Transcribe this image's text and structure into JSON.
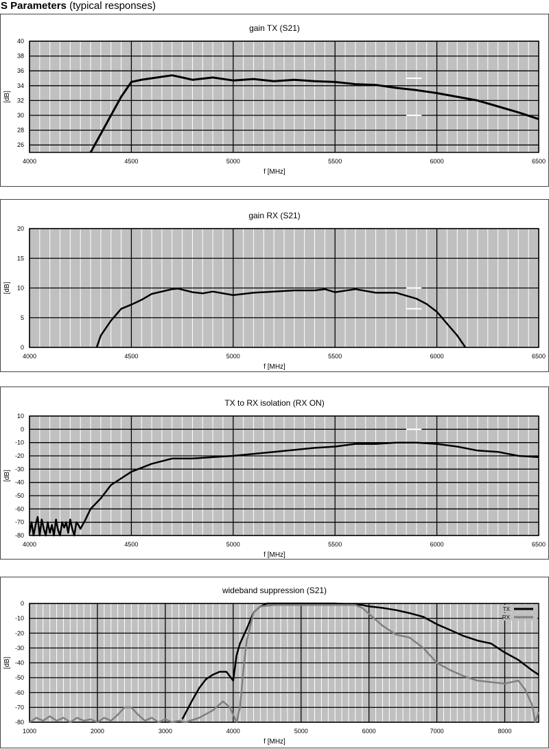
{
  "page": {
    "title_bold": "S Parameters",
    "title_rest": " (typical responses)"
  },
  "chart_data": [
    {
      "type": "line",
      "title": "gain TX (S21)",
      "xlabel": "f [MHz]",
      "ylabel": "[dB]",
      "xlim": [
        4000,
        6500
      ],
      "ylim": [
        25,
        40
      ],
      "xticks": [
        4000,
        4500,
        5000,
        5500,
        6000,
        6500
      ],
      "yticks": [
        26,
        28,
        30,
        32,
        34,
        36,
        38,
        40
      ],
      "grid": true,
      "spec_markers": [
        {
          "x": [
            5850,
            5925
          ],
          "y": 35
        },
        {
          "x": [
            5850,
            5925
          ],
          "y": 30
        }
      ],
      "series": [
        {
          "color": "#000000",
          "points": [
            [
              4300,
              25
            ],
            [
              4350,
              27.5
            ],
            [
              4400,
              30
            ],
            [
              4450,
              32.5
            ],
            [
              4500,
              34.5
            ],
            [
              4550,
              34.8
            ],
            [
              4600,
              35
            ],
            [
              4700,
              35.4
            ],
            [
              4750,
              35.1
            ],
            [
              4800,
              34.8
            ],
            [
              4900,
              35.1
            ],
            [
              5000,
              34.7
            ],
            [
              5100,
              34.9
            ],
            [
              5200,
              34.6
            ],
            [
              5300,
              34.8
            ],
            [
              5400,
              34.6
            ],
            [
              5500,
              34.5
            ],
            [
              5600,
              34.2
            ],
            [
              5700,
              34.1
            ],
            [
              5800,
              33.7
            ],
            [
              5900,
              33.4
            ],
            [
              6000,
              33
            ],
            [
              6100,
              32.5
            ],
            [
              6200,
              32
            ],
            [
              6300,
              31.2
            ],
            [
              6400,
              30.4
            ],
            [
              6500,
              29.5
            ]
          ]
        }
      ]
    },
    {
      "type": "line",
      "title": "gain RX (S21)",
      "xlabel": "f [MHz]",
      "ylabel": "[dB]",
      "xlim": [
        4000,
        6500
      ],
      "ylim": [
        0,
        20
      ],
      "xticks": [
        4000,
        4500,
        5000,
        5500,
        6000,
        6500
      ],
      "yticks": [
        0,
        5,
        10,
        15,
        20
      ],
      "grid": true,
      "spec_markers": [
        {
          "x": [
            5850,
            5925
          ],
          "y": 10
        },
        {
          "x": [
            5850,
            5925
          ],
          "y": 6.5
        }
      ],
      "series": [
        {
          "color": "#000000",
          "points": [
            [
              4330,
              0
            ],
            [
              4350,
              2
            ],
            [
              4400,
              4.5
            ],
            [
              4450,
              6.5
            ],
            [
              4500,
              7.2
            ],
            [
              4550,
              8
            ],
            [
              4600,
              9
            ],
            [
              4700,
              9.8
            ],
            [
              4730,
              9.9
            ],
            [
              4800,
              9.3
            ],
            [
              4850,
              9.1
            ],
            [
              4900,
              9.4
            ],
            [
              5000,
              8.8
            ],
            [
              5100,
              9.2
            ],
            [
              5200,
              9.4
            ],
            [
              5300,
              9.6
            ],
            [
              5400,
              9.6
            ],
            [
              5450,
              9.8
            ],
            [
              5500,
              9.3
            ],
            [
              5600,
              9.8
            ],
            [
              5700,
              9.2
            ],
            [
              5800,
              9.2
            ],
            [
              5900,
              8.2
            ],
            [
              5950,
              7.3
            ],
            [
              6000,
              6
            ],
            [
              6050,
              4
            ],
            [
              6100,
              2
            ],
            [
              6140,
              0
            ]
          ]
        }
      ]
    },
    {
      "type": "line",
      "title": "TX to RX isolation (RX ON)",
      "xlabel": "f [MHz]",
      "ylabel": "[dB]",
      "xlim": [
        4000,
        6500
      ],
      "ylim": [
        -80,
        10
      ],
      "xticks": [
        4000,
        4500,
        5000,
        5500,
        6000,
        6500
      ],
      "yticks": [
        -80,
        -70,
        -60,
        -50,
        -40,
        -30,
        -20,
        -10,
        0,
        10
      ],
      "grid": true,
      "spec_markers": [
        {
          "x": [
            5850,
            5925
          ],
          "y": 0
        }
      ],
      "series": [
        {
          "color": "#000000",
          "points": [
            [
              4000,
              -78
            ],
            [
              4010,
              -70
            ],
            [
              4020,
              -80
            ],
            [
              4030,
              -72
            ],
            [
              4040,
              -66
            ],
            [
              4050,
              -80
            ],
            [
              4060,
              -68
            ],
            [
              4070,
              -75
            ],
            [
              4080,
              -80
            ],
            [
              4090,
              -70
            ],
            [
              4100,
              -78
            ],
            [
              4110,
              -72
            ],
            [
              4120,
              -80
            ],
            [
              4130,
              -68
            ],
            [
              4140,
              -76
            ],
            [
              4150,
              -80
            ],
            [
              4160,
              -70
            ],
            [
              4170,
              -74
            ],
            [
              4180,
              -70
            ],
            [
              4190,
              -78
            ],
            [
              4200,
              -68
            ],
            [
              4210,
              -75
            ],
            [
              4220,
              -80
            ],
            [
              4230,
              -70
            ],
            [
              4240,
              -72
            ],
            [
              4250,
              -75
            ],
            [
              4275,
              -68
            ],
            [
              4300,
              -60
            ],
            [
              4350,
              -52
            ],
            [
              4400,
              -42
            ],
            [
              4500,
              -32
            ],
            [
              4600,
              -26
            ],
            [
              4700,
              -22
            ],
            [
              4800,
              -22
            ],
            [
              4900,
              -21
            ],
            [
              5000,
              -20
            ],
            [
              5200,
              -17
            ],
            [
              5400,
              -14
            ],
            [
              5500,
              -13
            ],
            [
              5600,
              -11
            ],
            [
              5700,
              -11
            ],
            [
              5800,
              -10
            ],
            [
              5900,
              -10
            ],
            [
              6000,
              -11
            ],
            [
              6100,
              -13
            ],
            [
              6200,
              -16
            ],
            [
              6300,
              -17
            ],
            [
              6400,
              -20
            ],
            [
              6500,
              -21
            ]
          ]
        }
      ]
    },
    {
      "type": "line",
      "title": "wideband suppression (S21)",
      "xlabel": "f [MHz]",
      "ylabel": "[dB]",
      "xlim": [
        1000,
        8500
      ],
      "ylim": [
        -80,
        0
      ],
      "xticks": [
        1000,
        2000,
        3000,
        4000,
        5000,
        6000,
        7000,
        8000
      ],
      "yticks": [
        -80,
        -70,
        -60,
        -50,
        -40,
        -30,
        -20,
        -10,
        0
      ],
      "grid": true,
      "legend": "top-right",
      "series": [
        {
          "name": "TX",
          "color": "#000000",
          "points": [
            [
              3250,
              -78
            ],
            [
              3400,
              -65
            ],
            [
              3500,
              -57
            ],
            [
              3600,
              -51
            ],
            [
              3700,
              -48
            ],
            [
              3800,
              -46
            ],
            [
              3900,
              -46
            ],
            [
              4000,
              -52
            ],
            [
              4050,
              -35
            ],
            [
              4100,
              -27
            ],
            [
              4200,
              -17
            ],
            [
              4300,
              -6
            ],
            [
              4400,
              -2
            ],
            [
              4500,
              0
            ],
            [
              4600,
              0
            ],
            [
              5000,
              0
            ],
            [
              5500,
              0
            ],
            [
              5900,
              -1
            ],
            [
              6000,
              -2
            ],
            [
              6200,
              -3
            ],
            [
              6400,
              -4.5
            ],
            [
              6600,
              -6.5
            ],
            [
              6800,
              -9
            ],
            [
              7000,
              -14
            ],
            [
              7200,
              -18
            ],
            [
              7400,
              -22
            ],
            [
              7600,
              -25
            ],
            [
              7800,
              -27
            ],
            [
              8000,
              -33
            ],
            [
              8200,
              -38
            ],
            [
              8400,
              -45
            ],
            [
              8500,
              -48
            ]
          ]
        },
        {
          "name": "RX",
          "color": "#808080",
          "points": [
            [
              1000,
              -80
            ],
            [
              1100,
              -77
            ],
            [
              1200,
              -79
            ],
            [
              1300,
              -76
            ],
            [
              1400,
              -79
            ],
            [
              1500,
              -77
            ],
            [
              1600,
              -80
            ],
            [
              1700,
              -77
            ],
            [
              1800,
              -79
            ],
            [
              1900,
              -78
            ],
            [
              2000,
              -80
            ],
            [
              2100,
              -77
            ],
            [
              2200,
              -79
            ],
            [
              2300,
              -75
            ],
            [
              2400,
              -70
            ],
            [
              2500,
              -70
            ],
            [
              2600,
              -75
            ],
            [
              2700,
              -79
            ],
            [
              2800,
              -77
            ],
            [
              2900,
              -80
            ],
            [
              3000,
              -78
            ],
            [
              3100,
              -80
            ],
            [
              3200,
              -79
            ],
            [
              3300,
              -80
            ],
            [
              3500,
              -77
            ],
            [
              3700,
              -72
            ],
            [
              3850,
              -66
            ],
            [
              3950,
              -70
            ],
            [
              4050,
              -80
            ],
            [
              4100,
              -70
            ],
            [
              4150,
              -45
            ],
            [
              4200,
              -25
            ],
            [
              4300,
              -6
            ],
            [
              4400,
              -2
            ],
            [
              4600,
              -1
            ],
            [
              5000,
              -1
            ],
            [
              5500,
              -1
            ],
            [
              5800,
              -1
            ],
            [
              5900,
              -3
            ],
            [
              6000,
              -7
            ],
            [
              6200,
              -15
            ],
            [
              6400,
              -21
            ],
            [
              6600,
              -23
            ],
            [
              6800,
              -30
            ],
            [
              7000,
              -40
            ],
            [
              7200,
              -45
            ],
            [
              7400,
              -49
            ],
            [
              7600,
              -52
            ],
            [
              7800,
              -53
            ],
            [
              8000,
              -54
            ],
            [
              8200,
              -52
            ],
            [
              8300,
              -58
            ],
            [
              8400,
              -68
            ],
            [
              8450,
              -80
            ],
            [
              8500,
              -73
            ]
          ]
        }
      ]
    }
  ]
}
